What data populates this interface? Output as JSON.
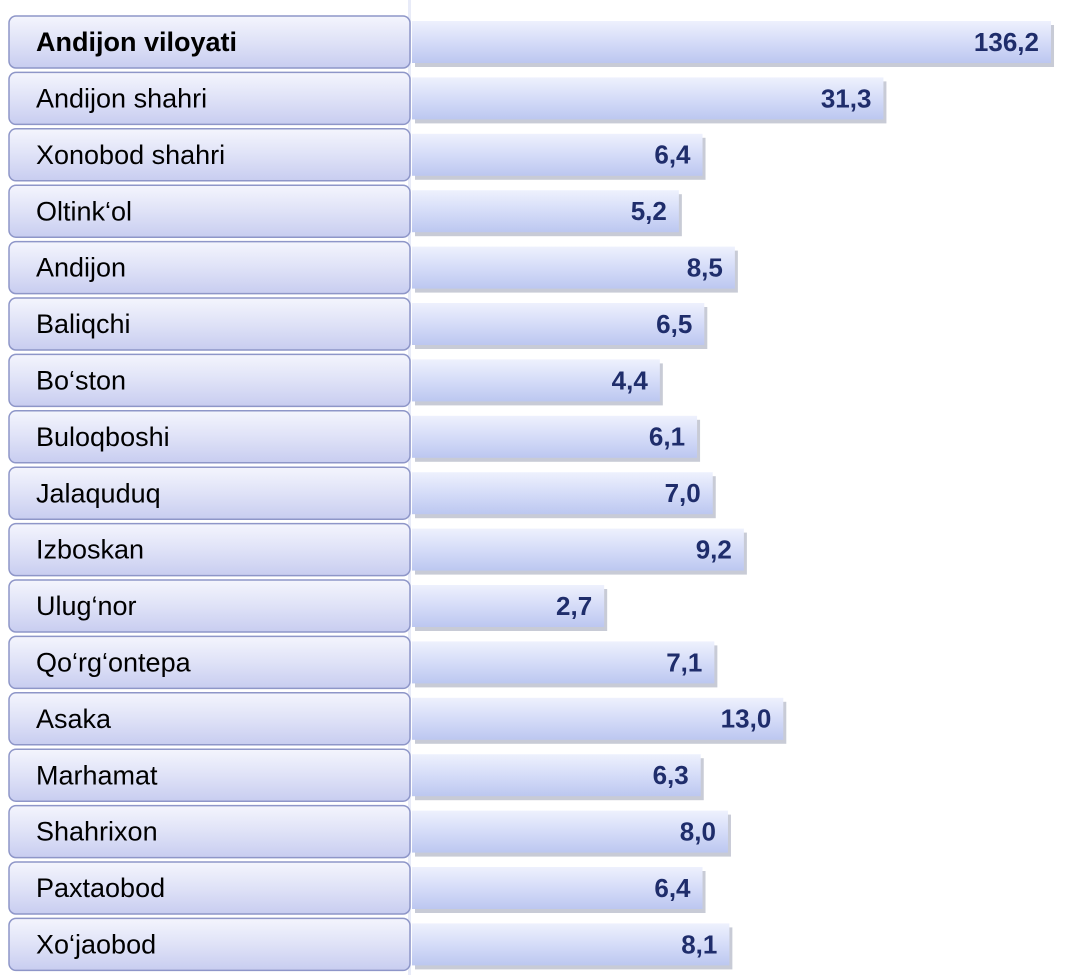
{
  "chart_data": {
    "type": "bar",
    "orientation": "horizontal",
    "categories": [
      "Andijon viloyati",
      "Andijon  shahri",
      "Xonobod shahri",
      "Oltink‘ol",
      "Andijon",
      "Baliqchi",
      "Bo‘ston",
      "Buloqboshi",
      "Jalaquduq",
      "Izboskan",
      "Ulug‘nor",
      "Qo‘rg‘ontepa",
      "Asaka",
      "Marhamat",
      "Shahrixon",
      "Paxtaobod",
      "Xo‘jaobod"
    ],
    "values": [
      136.2,
      31.3,
      6.4,
      5.2,
      8.5,
      6.5,
      4.4,
      6.1,
      7.0,
      9.2,
      2.7,
      7.1,
      13.0,
      6.3,
      8.0,
      6.4,
      8.1
    ],
    "value_labels": [
      "136,2",
      "31,3",
      "6,4",
      "5,2",
      "8,5",
      "6,5",
      "4,4",
      "6,1",
      "7,0",
      "9,2",
      "2,7",
      "7,1",
      "13,0",
      "6,3",
      "8,0",
      "6,4",
      "8,1"
    ],
    "color": "#c9d3f5",
    "log_scale": true,
    "xlim": [
      0.5,
      150
    ]
  }
}
